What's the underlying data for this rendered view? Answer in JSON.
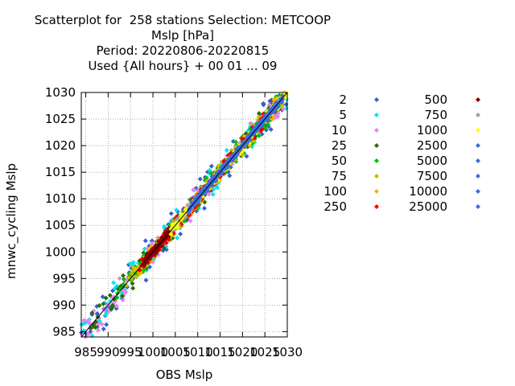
{
  "chart_data": {
    "type": "scatter",
    "title_lines": [
      "Scatterplot for  258 stations Selection: METCOOP",
      "Mslp [hPa]",
      "Period: 20220806-20220815",
      "Used {All hours} + 00 01 ... 09"
    ],
    "xlabel": "OBS Mslp",
    "ylabel": "mnwc_cycling Mslp",
    "xlim": [
      984,
      1030
    ],
    "ylim": [
      984,
      1030
    ],
    "x_ticks": [
      "985",
      "990",
      "995",
      "1000",
      "1005",
      "1010",
      "1015",
      "1020",
      "1025",
      "1030"
    ],
    "y_ticks": [
      "985",
      "990",
      "995",
      "1000",
      "1005",
      "1010",
      "1015",
      "1020",
      "1025",
      "1030"
    ],
    "grid": true,
    "legend_placement": "right",
    "legend": [
      {
        "label": "2",
        "color": "#3a5fcd"
      },
      {
        "label": "5",
        "color": "#00e5ee"
      },
      {
        "label": "10",
        "color": "#ee82ee"
      },
      {
        "label": "25",
        "color": "#2e6b00"
      },
      {
        "label": "50",
        "color": "#00c000"
      },
      {
        "label": "75",
        "color": "#c0c000"
      },
      {
        "label": "100",
        "color": "#ffb000"
      },
      {
        "label": "250",
        "color": "#ee0000"
      },
      {
        "label": "500",
        "color": "#8b0000"
      },
      {
        "label": "750",
        "color": "#a0a0a0"
      },
      {
        "label": "1000",
        "color": "#ffff00"
      },
      {
        "label": "2500",
        "color": "#3a6fdd"
      },
      {
        "label": "5000",
        "color": "#3a6fdd"
      },
      {
        "label": "7500",
        "color": "#3a6fdd"
      },
      {
        "label": "10000",
        "color": "#3a6fdd"
      },
      {
        "label": "25000",
        "color": "#3a6fdd"
      }
    ]
  }
}
